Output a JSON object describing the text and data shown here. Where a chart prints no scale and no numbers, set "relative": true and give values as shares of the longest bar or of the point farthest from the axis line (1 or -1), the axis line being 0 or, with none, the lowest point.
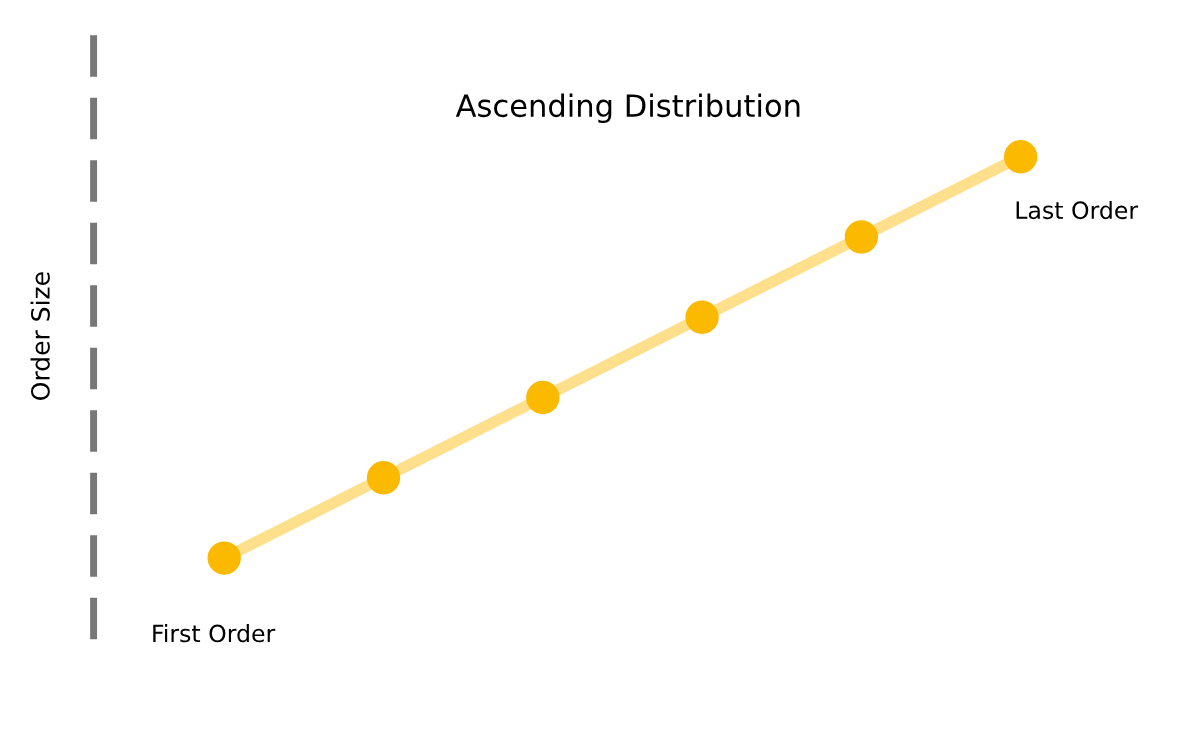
{
  "chart_data": {
    "type": "line",
    "title": "Ascending Distribution",
    "ylabel": "Order Size",
    "categories": [
      null,
      null,
      null,
      null,
      null,
      null
    ],
    "series": [
      {
        "color": "#fbb900",
        "values": [
          0,
          0.2,
          0.4,
          0.6,
          0.8,
          1
        ]
      }
    ],
    "relative": true,
    "marker": "circle",
    "line_style": "solid",
    "grid": false,
    "legend": false,
    "annotations": [
      "First Order",
      "Last Order"
    ]
  }
}
